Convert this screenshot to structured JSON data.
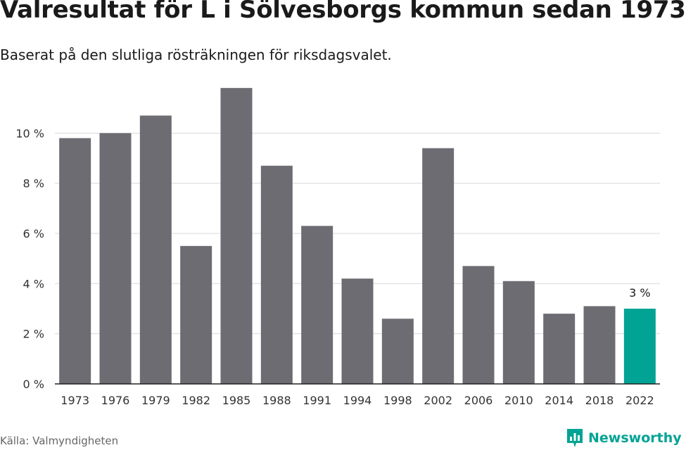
{
  "title": "Valresultat för L i Sölvesborgs kommun sedan 1973",
  "subtitle": "Baserat på den slutliga rösträkningen för riksdagsvalet.",
  "source": "Källa: Valmyndigheten",
  "brand": {
    "name": "Newsworthy",
    "icon": "newsworthy-logo-icon"
  },
  "colors": {
    "bar": "#6d6c72",
    "highlight": "#00a394",
    "grid": "#d9d9d9",
    "axis": "#222222"
  },
  "chart_data": {
    "type": "bar",
    "categories": [
      "1973",
      "1976",
      "1979",
      "1982",
      "1985",
      "1988",
      "1991",
      "1994",
      "1998",
      "2002",
      "2006",
      "2010",
      "2014",
      "2018",
      "2022"
    ],
    "values": [
      9.8,
      10.0,
      10.7,
      5.5,
      11.8,
      8.7,
      6.3,
      4.2,
      2.6,
      9.4,
      4.7,
      4.1,
      2.8,
      3.1,
      3.0
    ],
    "ylim": [
      0,
      12
    ],
    "yticks": [
      0,
      2,
      4,
      6,
      8,
      10
    ],
    "ytick_labels": [
      "0 %",
      "2 %",
      "4 %",
      "6 %",
      "8 %",
      "10 %"
    ],
    "highlight_index": 14,
    "annotation": {
      "index": 14,
      "text": "3 %"
    },
    "grid": true,
    "xlabel": "",
    "ylabel": ""
  }
}
